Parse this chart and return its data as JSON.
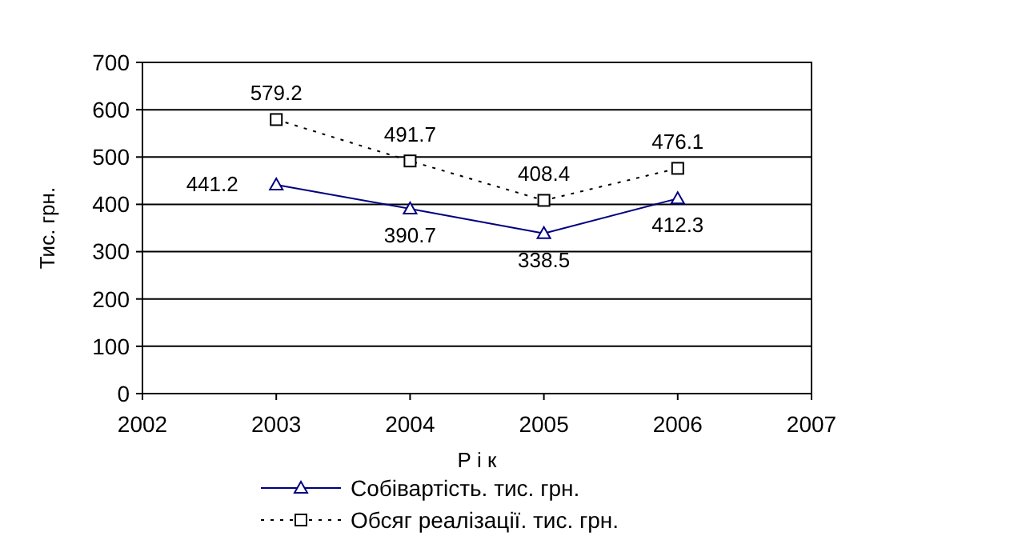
{
  "chart_data": {
    "type": "line",
    "xlabel": "Р і к",
    "ylabel": "Тис. грн.",
    "x": [
      2003,
      2004,
      2005,
      2006
    ],
    "xlim": [
      2002,
      2007
    ],
    "xticks": [
      2002,
      2003,
      2004,
      2005,
      2006,
      2007
    ],
    "ylim": [
      0,
      700
    ],
    "yticks": [
      0,
      100,
      200,
      300,
      400,
      500,
      600,
      700
    ],
    "grid": "y",
    "legend": "bottom",
    "data_labels": true,
    "series": [
      {
        "name": "Собівартість. тис. грн.",
        "color": "#000080",
        "values": [
          441.2,
          390.7,
          338.5,
          412.3
        ],
        "marker": "triangle",
        "line_style": "solid"
      },
      {
        "name": "Обсяг реалізації. тис. грн.",
        "color": "#000000",
        "values": [
          579.2,
          491.7,
          408.4,
          476.1
        ],
        "marker": "square",
        "line_style": "dotted"
      }
    ]
  }
}
